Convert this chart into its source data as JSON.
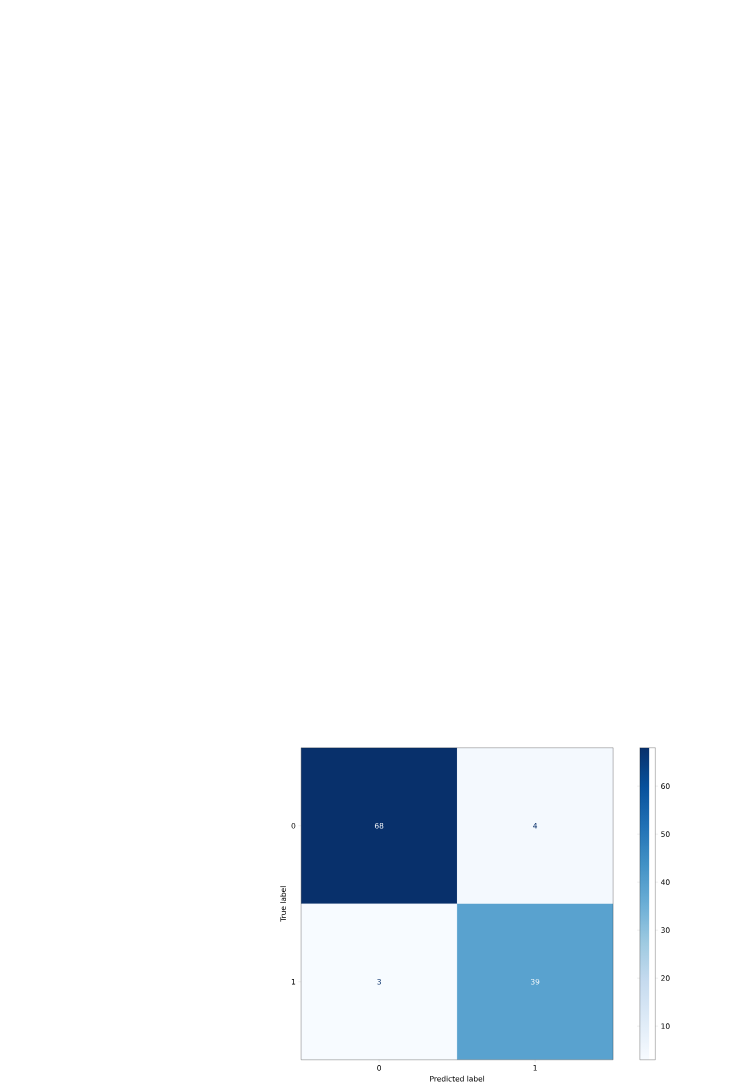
{
  "chart_data": {
    "type": "heatmap",
    "categories": [
      "0",
      "1"
    ],
    "y_categories": [
      "0",
      "1"
    ],
    "cells": [
      [
        68,
        4
      ],
      [
        3,
        39
      ]
    ],
    "xlabel": "Predicted label",
    "ylabel": "True label",
    "data_labels": true,
    "clim": [
      3,
      68
    ],
    "cticks": [
      10,
      20,
      30,
      40,
      50,
      60
    ]
  }
}
